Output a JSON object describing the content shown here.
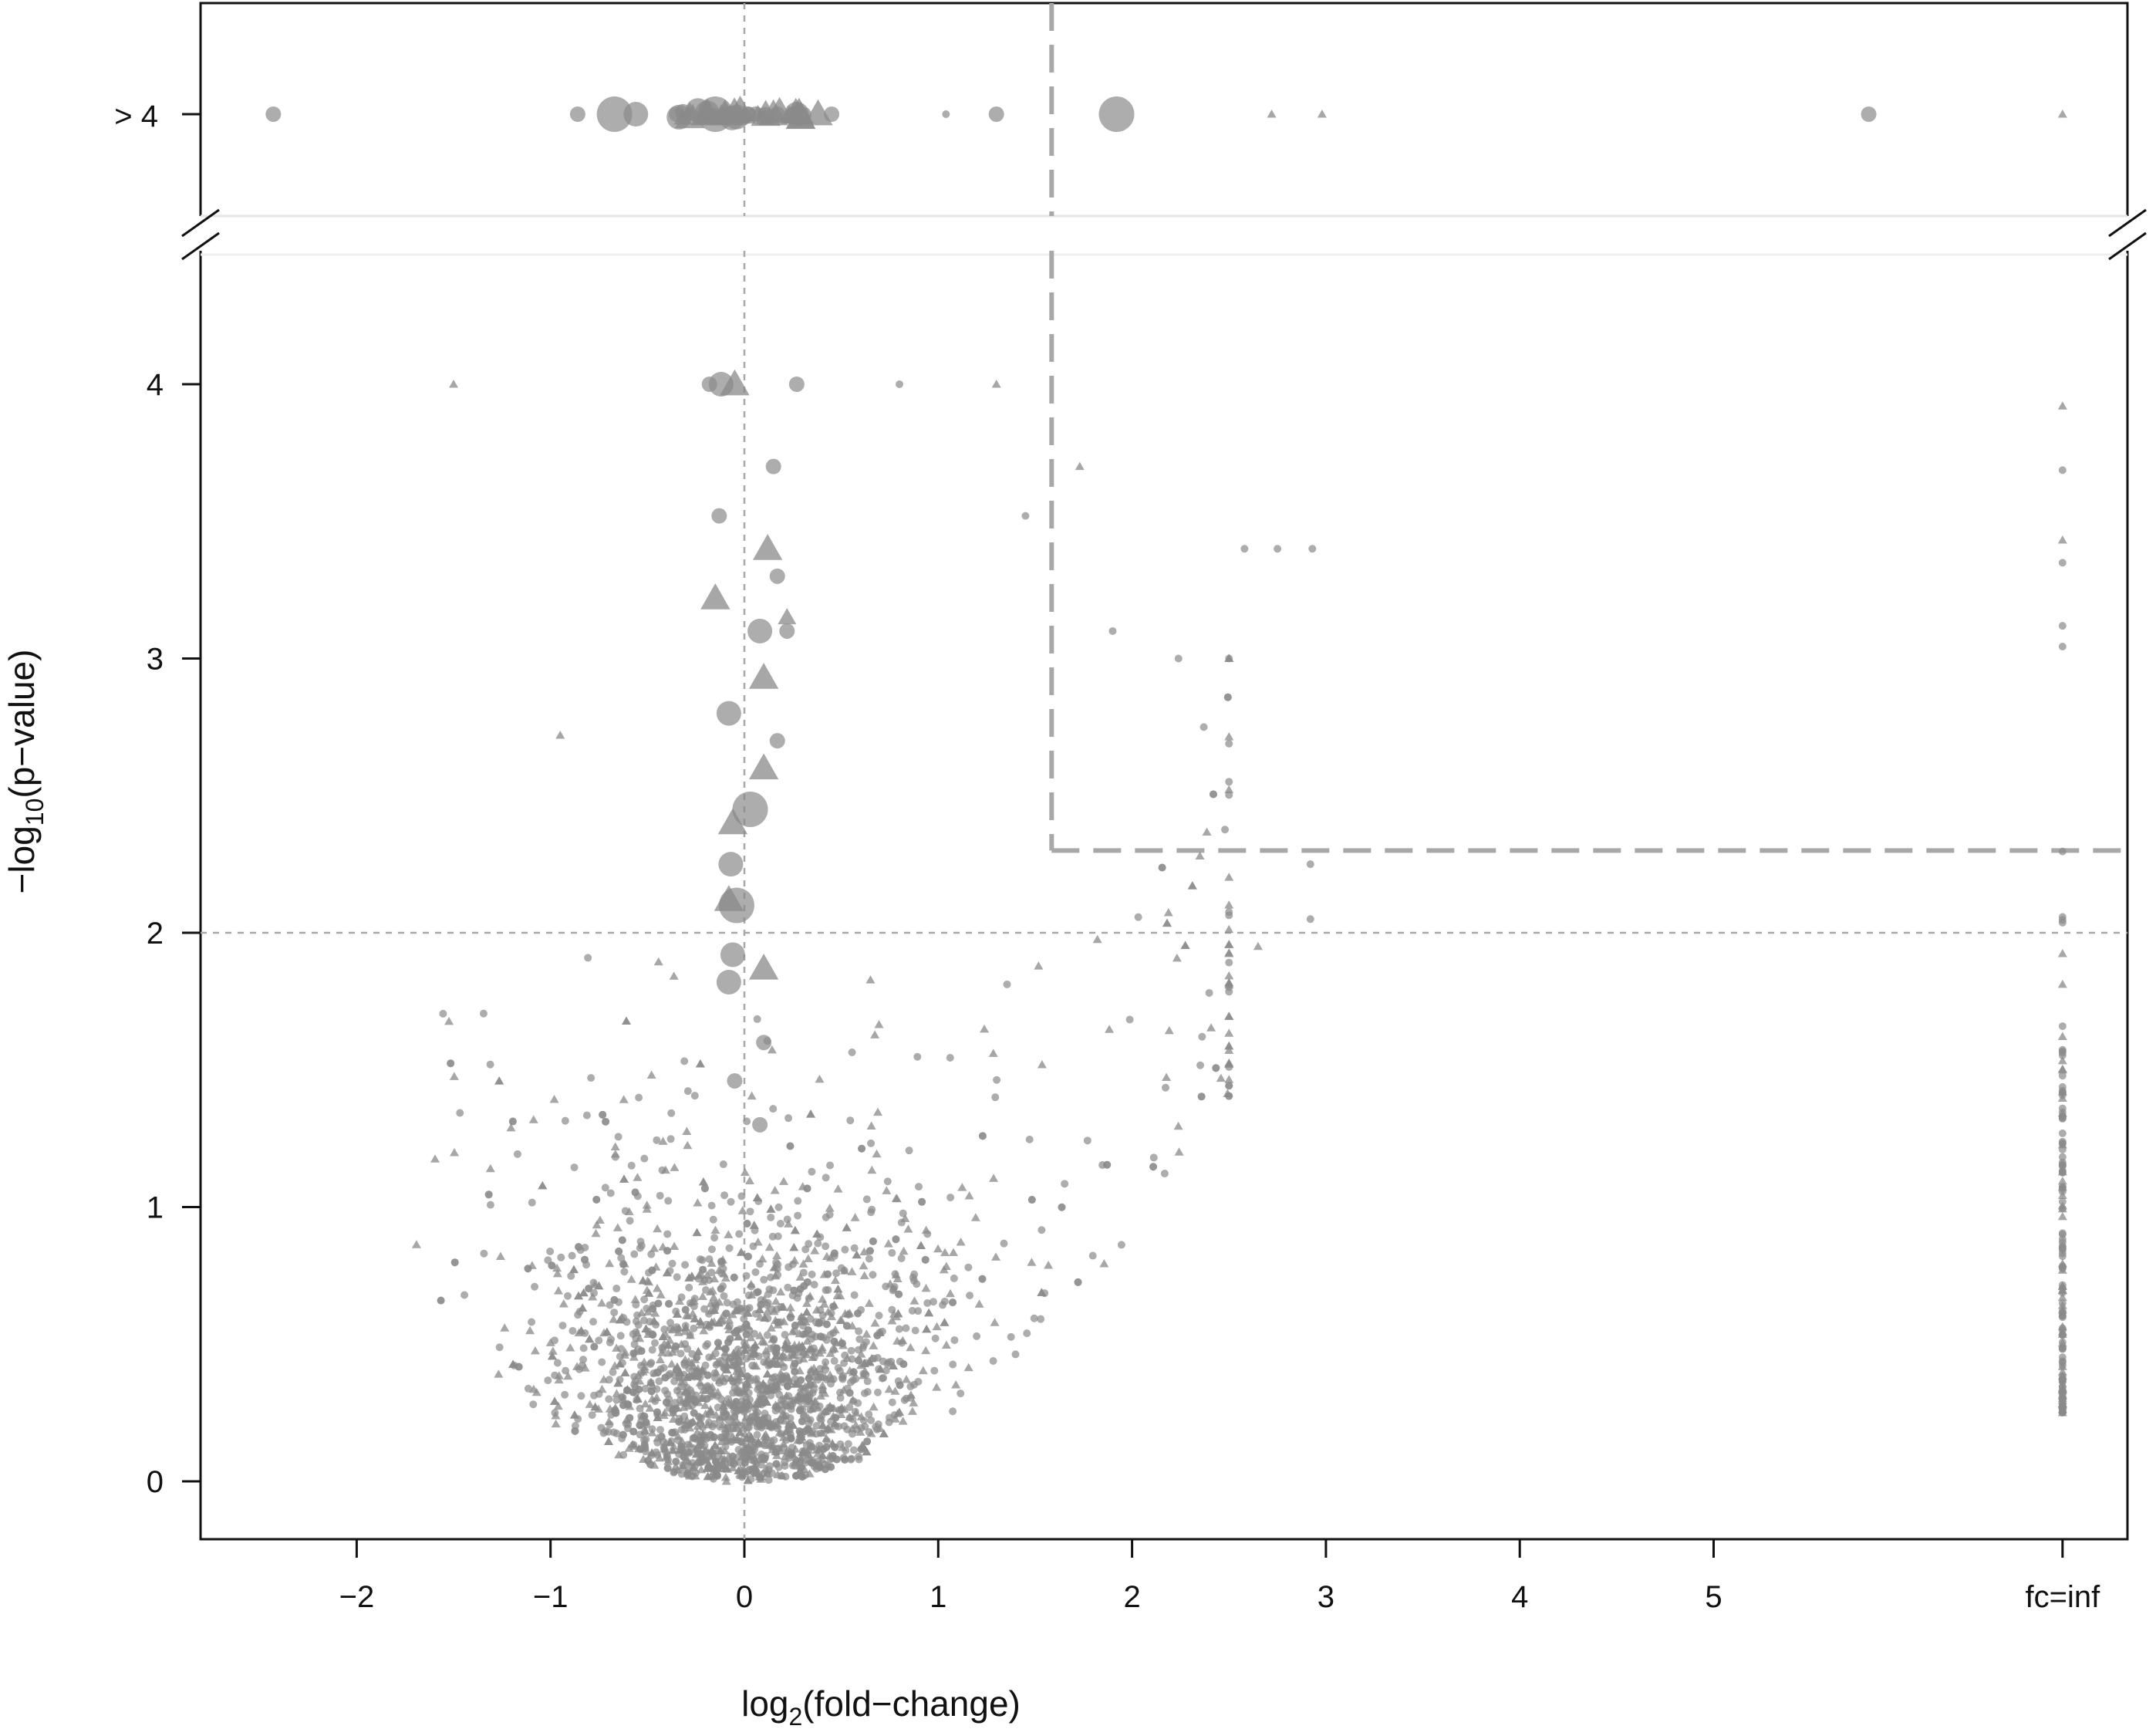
{
  "chart_data": {
    "type": "scatter",
    "title": "",
    "xlabel": {
      "prefix": "log",
      "sub": "2",
      "suffix": "(fold−change)"
    },
    "ylabel": {
      "prefix": "−log",
      "sub": "10",
      "suffix": "(p−value)"
    },
    "xlim": [
      -2.8,
      7.2
    ],
    "ylim": [
      -0.2,
      4.35
    ],
    "x_ticks": [
      {
        "value": -2,
        "label": "−2"
      },
      {
        "value": -1,
        "label": "−1"
      },
      {
        "value": 0,
        "label": "0"
      },
      {
        "value": 1,
        "label": "1"
      },
      {
        "value": 2,
        "label": "2"
      },
      {
        "value": 3,
        "label": "3"
      },
      {
        "value": 4,
        "label": "4"
      },
      {
        "value": 5,
        "label": "5"
      },
      {
        "value": 6.8,
        "label": "fc=inf"
      }
    ],
    "y_ticks": [
      {
        "value": 0,
        "label": "0"
      },
      {
        "value": 1,
        "label": "1"
      },
      {
        "value": 2,
        "label": "2"
      },
      {
        "value": 3,
        "label": "3"
      },
      {
        "value": 4,
        "label": "4"
      }
    ],
    "top_panel_label": "> 4",
    "axis_break": true,
    "reference_lines": [
      {
        "kind": "vertical",
        "x": 0,
        "style": "dotted"
      },
      {
        "kind": "horizontal",
        "y": 2,
        "style": "dotted"
      },
      {
        "kind": "vertical",
        "x": 1.585,
        "y_from": 2.3,
        "style": "dashed",
        "extends_to_top_panel": true
      },
      {
        "kind": "horizontal",
        "y": 2.3,
        "x_from": 1.585,
        "style": "dashed"
      }
    ],
    "colors": {
      "points": "#8a8a8a",
      "reference": "#a8a8a8",
      "axis": "#111111"
    },
    "point_legend": "circle and triangle markers, size reflects magnitude",
    "highlight_points": [
      {
        "x": -0.12,
        "y": 4.0,
        "shape": "circle",
        "size": 2
      },
      {
        "x": -0.05,
        "y": 4.0,
        "shape": "triangle",
        "size": 2
      },
      {
        "x": -0.18,
        "y": 4.0,
        "shape": "circle",
        "size": 1
      },
      {
        "x": 0.27,
        "y": 4.0,
        "shape": "circle",
        "size": 1
      },
      {
        "x": 0.15,
        "y": 3.7,
        "shape": "circle",
        "size": 1
      },
      {
        "x": -0.13,
        "y": 3.52,
        "shape": "circle",
        "size": 1
      },
      {
        "x": 0.12,
        "y": 3.4,
        "shape": "triangle",
        "size": 2
      },
      {
        "x": 0.17,
        "y": 3.3,
        "shape": "circle",
        "size": 1
      },
      {
        "x": -0.15,
        "y": 3.22,
        "shape": "triangle",
        "size": 2
      },
      {
        "x": 0.22,
        "y": 3.15,
        "shape": "triangle",
        "size": 1
      },
      {
        "x": 0.08,
        "y": 3.1,
        "shape": "circle",
        "size": 2
      },
      {
        "x": 0.22,
        "y": 3.1,
        "shape": "circle",
        "size": 1
      },
      {
        "x": 0.1,
        "y": 2.93,
        "shape": "triangle",
        "size": 2
      },
      {
        "x": -0.08,
        "y": 2.8,
        "shape": "circle",
        "size": 2
      },
      {
        "x": 0.17,
        "y": 2.7,
        "shape": "circle",
        "size": 1
      },
      {
        "x": 0.1,
        "y": 2.6,
        "shape": "triangle",
        "size": 2
      },
      {
        "x": 0.03,
        "y": 2.45,
        "shape": "circle",
        "size": 3
      },
      {
        "x": -0.06,
        "y": 2.4,
        "shape": "triangle",
        "size": 2
      },
      {
        "x": -0.07,
        "y": 2.25,
        "shape": "circle",
        "size": 2
      },
      {
        "x": -0.04,
        "y": 2.1,
        "shape": "circle",
        "size": 3
      },
      {
        "x": -0.08,
        "y": 2.12,
        "shape": "triangle",
        "size": 2
      },
      {
        "x": -0.06,
        "y": 1.92,
        "shape": "circle",
        "size": 2
      },
      {
        "x": 0.1,
        "y": 1.87,
        "shape": "triangle",
        "size": 2
      },
      {
        "x": -0.08,
        "y": 1.82,
        "shape": "circle",
        "size": 2
      },
      {
        "x": 0.1,
        "y": 1.6,
        "shape": "circle",
        "size": 1
      },
      {
        "x": -0.05,
        "y": 1.46,
        "shape": "circle",
        "size": 1
      },
      {
        "x": 0.08,
        "y": 1.3,
        "shape": "circle",
        "size": 1
      },
      {
        "x": -1.5,
        "y": 4.0,
        "shape": "triangle",
        "size": 0
      },
      {
        "x": 0.8,
        "y": 4.0,
        "shape": "circle",
        "size": 0
      },
      {
        "x": 1.3,
        "y": 4.0,
        "shape": "triangle",
        "size": 0
      },
      {
        "x": 2.58,
        "y": 3.4,
        "shape": "circle",
        "size": 0
      },
      {
        "x": 2.75,
        "y": 3.4,
        "shape": "circle",
        "size": 0
      },
      {
        "x": 2.93,
        "y": 3.4,
        "shape": "circle",
        "size": 0
      },
      {
        "x": 1.9,
        "y": 3.1,
        "shape": "circle",
        "size": 0
      },
      {
        "x": 2.37,
        "y": 2.75,
        "shape": "circle",
        "size": 0
      },
      {
        "x": 1.73,
        "y": 3.7,
        "shape": "triangle",
        "size": 0
      },
      {
        "x": 1.45,
        "y": 3.52,
        "shape": "circle",
        "size": 0
      },
      {
        "x": -0.95,
        "y": 2.72,
        "shape": "triangle",
        "size": 0
      },
      {
        "x": 2.92,
        "y": 2.25,
        "shape": "circle",
        "size": 0
      },
      {
        "x": 2.92,
        "y": 2.05,
        "shape": "circle",
        "size": 0
      },
      {
        "x": 2.65,
        "y": 1.95,
        "shape": "triangle",
        "size": 0
      },
      {
        "x": 2.35,
        "y": 2.28,
        "shape": "triangle",
        "size": 0
      }
    ],
    "top_panel_points": [
      {
        "x": -2.43,
        "shape": "circle",
        "size": 1
      },
      {
        "x": -0.86,
        "shape": "circle",
        "size": 1
      },
      {
        "x": -0.67,
        "shape": "circle",
        "size": 3
      },
      {
        "x": -0.56,
        "shape": "circle",
        "size": 2
      },
      {
        "x": -0.35,
        "shape": "circle",
        "size": 1
      },
      {
        "x": -0.2,
        "shape": "triangle",
        "size": 2
      },
      {
        "x": -0.15,
        "shape": "circle",
        "size": 3
      },
      {
        "x": -0.1,
        "shape": "triangle",
        "size": 2
      },
      {
        "x": 0.02,
        "shape": "circle",
        "size": 1
      },
      {
        "x": 0.15,
        "shape": "triangle",
        "size": 2
      },
      {
        "x": 0.27,
        "shape": "circle",
        "size": 2
      },
      {
        "x": 0.38,
        "shape": "triangle",
        "size": 2
      },
      {
        "x": 0.45,
        "shape": "circle",
        "size": 1
      },
      {
        "x": 1.04,
        "shape": "circle",
        "size": 0
      },
      {
        "x": 1.3,
        "shape": "circle",
        "size": 1
      },
      {
        "x": 1.92,
        "shape": "circle",
        "size": 3
      },
      {
        "x": 2.72,
        "shape": "triangle",
        "size": 0
      },
      {
        "x": 2.98,
        "shape": "triangle",
        "size": 0
      },
      {
        "x": 5.8,
        "shape": "circle",
        "size": 1
      },
      {
        "x": 6.8,
        "shape": "triangle",
        "size": 0
      }
    ]
  }
}
